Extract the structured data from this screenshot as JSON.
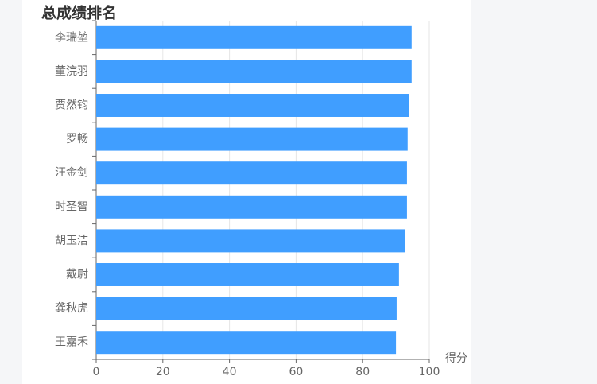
{
  "chart_data": {
    "type": "bar",
    "orientation": "horizontal",
    "title": "总成绩排名",
    "x_label": "得分",
    "categories": [
      "李瑞堃",
      "董浣羽",
      "贾然钧",
      "罗畅",
      "汪金剑",
      "时圣智",
      "胡玉洁",
      "戴尉",
      "龚秋虎",
      "王嘉禾"
    ],
    "values": [
      94.7,
      94.7,
      93.8,
      93.5,
      93.3,
      93.3,
      92.6,
      90.9,
      90.2,
      90.0
    ],
    "color": "#409eff",
    "xlim": [
      0,
      100
    ],
    "xticks": [
      0,
      20,
      40,
      60,
      80,
      100
    ],
    "grid": true
  }
}
